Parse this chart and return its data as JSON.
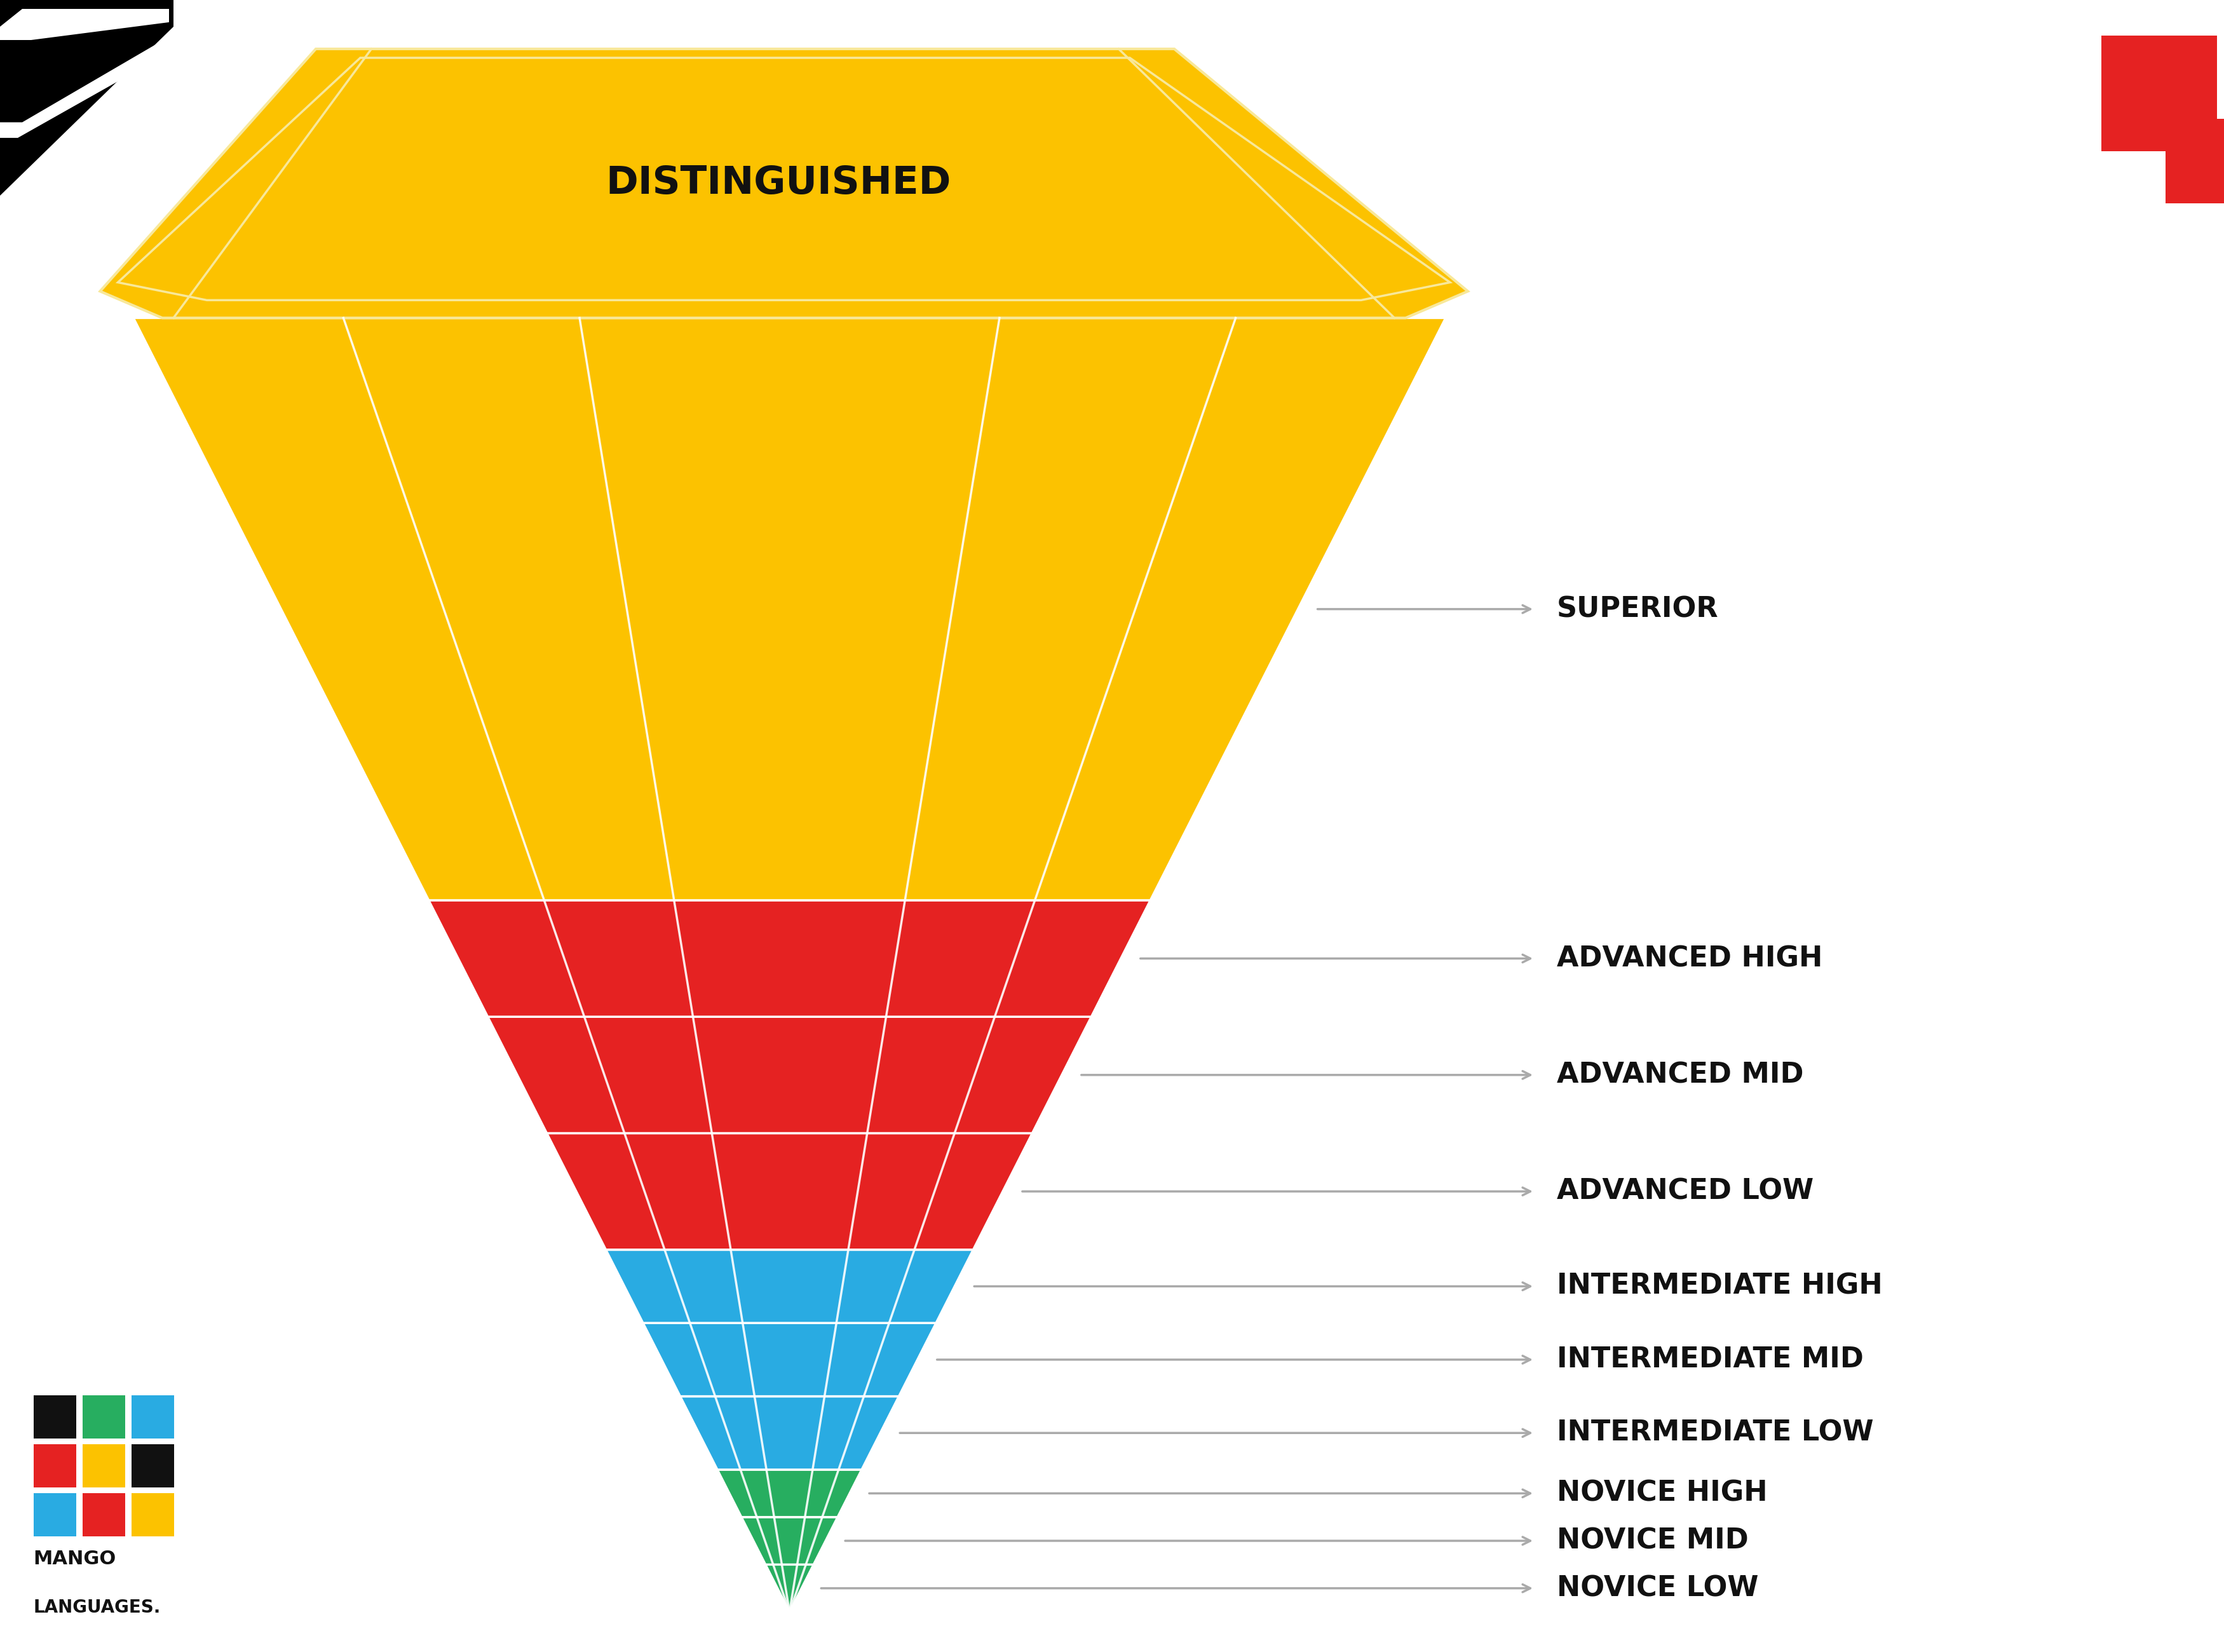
{
  "title": "DISTINGUISHED",
  "background_color": "#ffffff",
  "levels": [
    {
      "label": "NOVICE LOW",
      "color": "#27AE60",
      "group": "novice"
    },
    {
      "label": "NOVICE MID",
      "color": "#27AE60",
      "group": "novice"
    },
    {
      "label": "NOVICE HIGH",
      "color": "#27AE60",
      "group": "novice"
    },
    {
      "label": "INTERMEDIATE LOW",
      "color": "#2E9ED8",
      "group": "intermediate"
    },
    {
      "label": "INTERMEDIATE MID",
      "color": "#2E9ED8",
      "group": "intermediate"
    },
    {
      "label": "INTERMEDIATE HIGH",
      "color": "#2E9ED8",
      "group": "intermediate"
    },
    {
      "label": "ADVANCED LOW",
      "color": "#E52222",
      "group": "advanced"
    },
    {
      "label": "ADVANCED MID",
      "color": "#E52222",
      "group": "advanced"
    },
    {
      "label": "ADVANCED HIGH",
      "color": "#E52222",
      "group": "advanced"
    },
    {
      "label": "SUPERIOR",
      "color": "#FCC200",
      "group": "superior"
    }
  ],
  "distinguished_color": "#FCC200",
  "distinguished_outline_color": "#F8E89A",
  "line_color": "#ffffff",
  "arrow_color": "#aaaaaa",
  "label_color": "#111111",
  "label_fontsize": 32,
  "title_fontsize": 44
}
